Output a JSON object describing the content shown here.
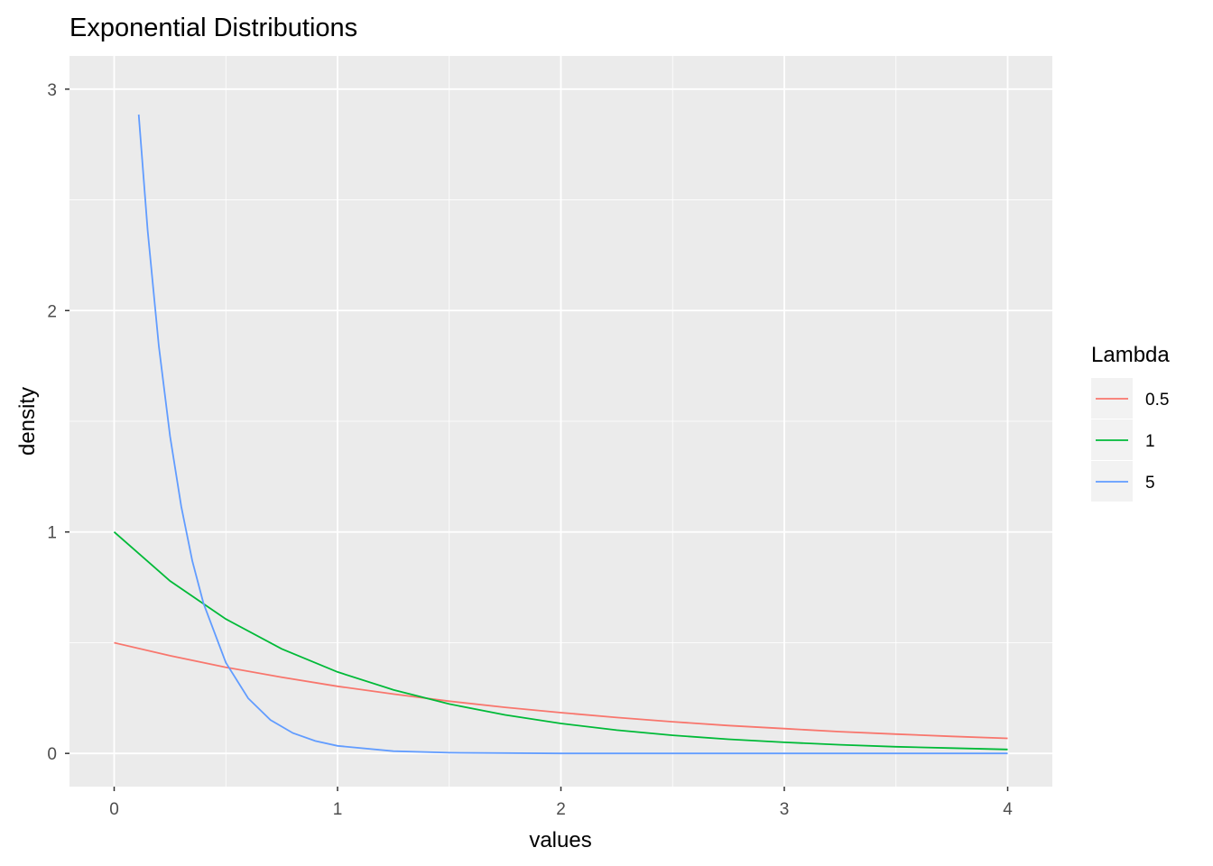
{
  "chart_data": {
    "type": "line",
    "title": "Exponential Distributions",
    "xlabel": "values",
    "ylabel": "density",
    "xlim": [
      -0.2,
      4.2
    ],
    "ylim": [
      -0.15,
      3.15
    ],
    "x_ticks": [
      0,
      1,
      2,
      3,
      4
    ],
    "y_ticks": [
      0,
      1,
      2,
      3
    ],
    "x_tick_labels": [
      "0",
      "1",
      "2",
      "3",
      "4"
    ],
    "y_tick_labels": [
      "0",
      "1",
      "2",
      "3"
    ],
    "grid": true,
    "legend": {
      "title": "Lambda",
      "placement": "right"
    },
    "series": [
      {
        "name": "0.5",
        "color": "#F8766D",
        "x": [
          0,
          0.25,
          0.5,
          0.75,
          1,
          1.25,
          1.5,
          1.75,
          2,
          2.25,
          2.5,
          2.75,
          3,
          3.25,
          3.5,
          3.75,
          4
        ],
        "y": [
          0.5,
          0.441,
          0.389,
          0.344,
          0.303,
          0.268,
          0.236,
          0.208,
          0.184,
          0.162,
          0.143,
          0.126,
          0.112,
          0.098,
          0.087,
          0.077,
          0.068
        ]
      },
      {
        "name": "1",
        "color": "#00BA38",
        "x": [
          0,
          0.25,
          0.5,
          0.75,
          1,
          1.25,
          1.5,
          1.75,
          2,
          2.25,
          2.5,
          2.75,
          3,
          3.25,
          3.5,
          3.75,
          4
        ],
        "y": [
          1.0,
          0.779,
          0.607,
          0.472,
          0.368,
          0.287,
          0.223,
          0.174,
          0.135,
          0.105,
          0.082,
          0.064,
          0.05,
          0.039,
          0.03,
          0.024,
          0.018
        ]
      },
      {
        "name": "5",
        "color": "#619CFF",
        "x": [
          0.11,
          0.15,
          0.2,
          0.25,
          0.3,
          0.35,
          0.4,
          0.5,
          0.6,
          0.7,
          0.8,
          0.9,
          1.0,
          1.25,
          1.5,
          2.0,
          2.5,
          3.0,
          3.5,
          4.0
        ],
        "y": [
          2.885,
          2.362,
          1.839,
          1.433,
          1.116,
          0.869,
          0.677,
          0.41,
          0.249,
          0.151,
          0.092,
          0.056,
          0.034,
          0.01,
          0.003,
          0.0,
          0.0,
          0.0,
          0.0,
          0.0
        ]
      }
    ]
  }
}
